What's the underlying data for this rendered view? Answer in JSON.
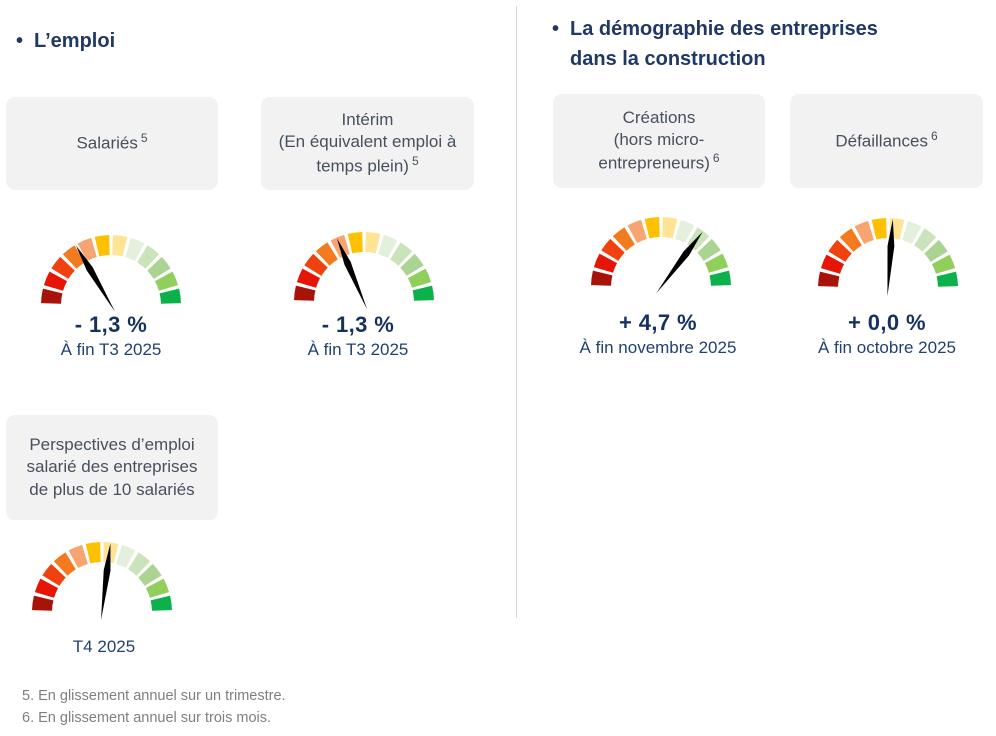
{
  "page": {
    "bullet": "•",
    "left_section_title": "L’emploi",
    "right_section_title_line1": "La démographie des entreprises",
    "right_section_title_line2": "dans la construction"
  },
  "footnotes": [
    "5. En glissement annuel sur un trimestre.",
    "6. En glissement annuel sur trois mois."
  ],
  "colors": {
    "heading": "#1F3864",
    "value_text": "#17315F",
    "period_text": "#1F4173",
    "card_bg": "#F2F2F2",
    "card_text": "#46505E",
    "footnote_text": "#7F7F7F",
    "divider": "#D6D6D6",
    "needle": "#000000"
  },
  "gauge_style": {
    "segment_colors": [
      "#A81309",
      "#E51607",
      "#F0420E",
      "#F37A1E",
      "#F8A470",
      "#FFC000",
      "#FFE494",
      "#E4F0DB",
      "#CBE3BA",
      "#ABD391",
      "#90CF5B",
      "#0DB14B"
    ],
    "outer_radius": 70,
    "inner_radius": 50,
    "gap_deg": 3,
    "arc_span_deg": 180
  },
  "chart_data": [
    {
      "type": "gauge",
      "section": "L’emploi",
      "card_title": "Salariés",
      "card_subtitle": "",
      "footnote_sup": "5",
      "value_label": "- 1,3 %",
      "value_pct": -1.3,
      "period_label": "À fin T3 2025",
      "needle_angle_deg": 120.5
    },
    {
      "type": "gauge",
      "section": "L’emploi",
      "card_title": "Intérim",
      "card_subtitle": "(En équivalent emploi à temps plein)",
      "footnote_sup": "5",
      "value_label": "- 1,3 %",
      "value_pct": -1.3,
      "period_label": "À fin T3 2025",
      "needle_angle_deg": 113
    },
    {
      "type": "gauge",
      "section": "L’emploi",
      "card_title": "Perspectives d’emploi salarié des entreprises de plus de 10 salariés",
      "card_subtitle": "",
      "footnote_sup": "",
      "value_label": "",
      "value_pct": null,
      "period_label": "T4 2025",
      "needle_angle_deg": 83
    },
    {
      "type": "gauge",
      "section": "La démographie des entreprises dans la construction",
      "card_title": "Créations",
      "card_subtitle": "(hors micro-entrepreneurs)",
      "footnote_sup": "6",
      "value_label": "+ 4,7 %",
      "value_pct": 4.7,
      "period_label": "À fin novembre 2025",
      "needle_angle_deg": 53
    },
    {
      "type": "gauge",
      "section": "La démographie des entreprises dans la construction",
      "card_title": "Défaillances",
      "card_subtitle": "",
      "footnote_sup": "6",
      "value_label": "+ 0,0 %",
      "value_pct": 0.0,
      "period_label": "À fin octobre 2025",
      "needle_angle_deg": 86
    }
  ]
}
